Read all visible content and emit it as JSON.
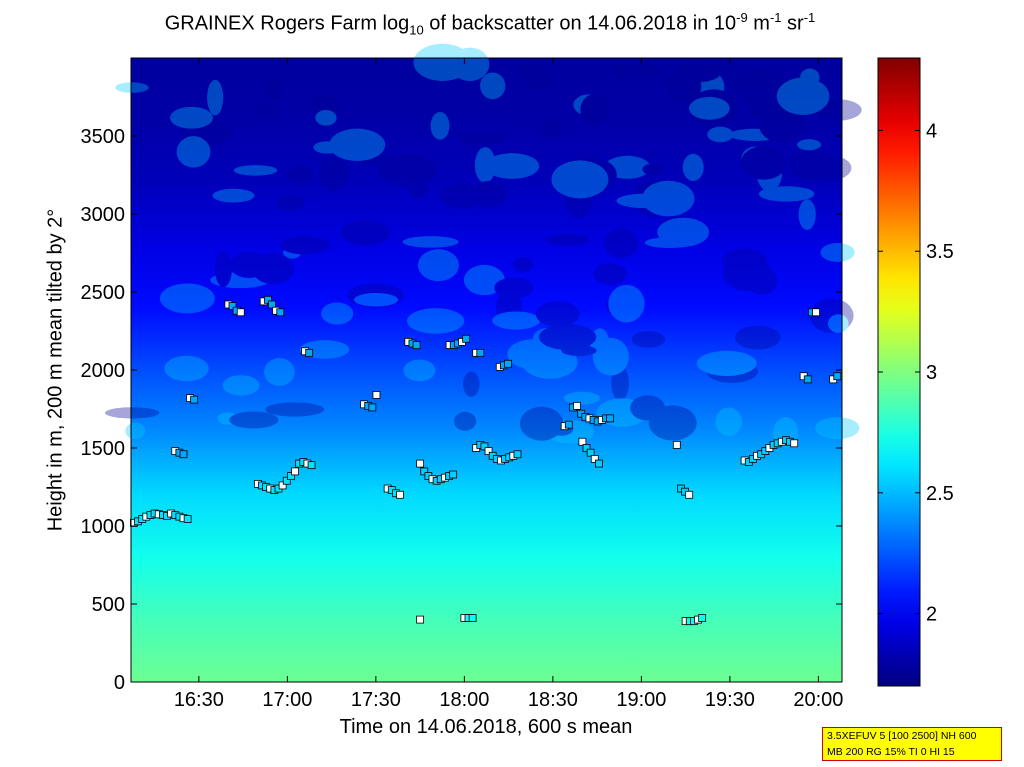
{
  "title": {
    "prefix": "GRAINEX Rogers Farm log",
    "log_base": "10",
    "middle": " of backscatter on 14.06.2018 in 10",
    "exp1": "-9",
    "unit1": " m",
    "exp2": "-1",
    "unit2": " sr",
    "exp3": "-1"
  },
  "chart_data": {
    "type": "heatmap",
    "xlabel": "Time on 14.06.2018, 600 s mean",
    "ylabel": "Height in m, 200 m mean tilted by 2°",
    "x_range": [
      "16:07",
      "20:08"
    ],
    "ylim": [
      0,
      4000
    ],
    "x_ticks": [
      "16:30",
      "17:00",
      "17:30",
      "18:00",
      "18:30",
      "19:00",
      "19:30",
      "20:00"
    ],
    "y_ticks": [
      0,
      500,
      1000,
      1500,
      2000,
      2500,
      3000,
      3500
    ],
    "colorbar": {
      "range": [
        1.7,
        4.3
      ],
      "ticks": [
        "2",
        "2.5",
        "3",
        "3.5",
        "4"
      ],
      "colormap": "jet"
    },
    "background_profile": [
      {
        "height": 0,
        "value": 2.95
      },
      {
        "height": 400,
        "value": 2.85
      },
      {
        "height": 800,
        "value": 2.72
      },
      {
        "height": 1200,
        "value": 2.58
      },
      {
        "height": 1600,
        "value": 2.38
      },
      {
        "height": 2000,
        "value": 2.22
      },
      {
        "height": 2400,
        "value": 2.05
      },
      {
        "height": 2800,
        "value": 1.95
      },
      {
        "height": 3200,
        "value": 1.85
      },
      {
        "height": 3600,
        "value": 1.8
      },
      {
        "height": 4000,
        "value": 1.78
      }
    ],
    "markers": [
      {
        "series": "cloud_layer_low",
        "time": "16:08",
        "heights": [
          1020,
          1030,
          1045,
          1060,
          1070,
          1080,
          1075,
          1070,
          1065,
          1080,
          1070,
          1060,
          1050,
          1045
        ]
      },
      {
        "series": "cloud_layer_low",
        "time": "16:50",
        "heights": [
          1270,
          1260,
          1250,
          1240,
          1230,
          1240,
          1260,
          1290,
          1320,
          1350,
          1400,
          1410,
          1400,
          1390
        ]
      },
      {
        "series": "cloud_layer_low",
        "time": "17:34",
        "heights": [
          1240,
          1230,
          1210,
          1200
        ]
      },
      {
        "series": "cloud_layer_mid",
        "time": "17:45",
        "heights": [
          1400,
          1350,
          1320,
          1300,
          1290,
          1300,
          1310,
          1320,
          1330
        ]
      },
      {
        "series": "cloud_layer_mid",
        "time": "18:04",
        "heights": [
          1500,
          1520,
          1510,
          1480,
          1450,
          1430,
          1420,
          1430,
          1440,
          1450,
          1460
        ]
      },
      {
        "series": "cloud_layer_mid",
        "time": "18:40",
        "heights": [
          1540,
          1500,
          1470,
          1430,
          1400
        ]
      },
      {
        "series": "cloud_layer_mid",
        "time": "19:12",
        "heights": [
          1520,
          1240,
          1220,
          1200
        ]
      },
      {
        "series": "cloud_layer_mid",
        "time": "19:35",
        "heights": [
          1420,
          1410,
          1430,
          1450,
          1460,
          1480,
          1500,
          1520,
          1530,
          1540,
          1550,
          1540,
          1530
        ]
      },
      {
        "series": "cloud_layer_high",
        "time": "16:22",
        "heights": [
          1480,
          1470,
          1460
        ]
      },
      {
        "series": "cloud_layer_high",
        "time": "16:27",
        "heights": [
          1820,
          1810
        ]
      },
      {
        "series": "cloud_layer_high",
        "time": "16:40",
        "heights": [
          2420,
          2410,
          2380,
          2370
        ]
      },
      {
        "series": "cloud_layer_high",
        "time": "16:52",
        "heights": [
          2440,
          2450,
          2420,
          2380,
          2370
        ]
      },
      {
        "series": "cloud_layer_high",
        "time": "17:06",
        "heights": [
          2120,
          2110
        ]
      },
      {
        "series": "cloud_layer_high",
        "time": "17:26",
        "heights": [
          1780,
          1770,
          1760,
          1840
        ]
      },
      {
        "series": "cloud_layer_high",
        "time": "17:41",
        "heights": [
          2180,
          2170,
          2160
        ]
      },
      {
        "series": "cloud_layer_high",
        "time": "17:55",
        "heights": [
          2160,
          2160,
          2170,
          2180,
          2200
        ]
      },
      {
        "series": "cloud_layer_high",
        "time": "18:04",
        "heights": [
          2110,
          2110
        ]
      },
      {
        "series": "cloud_layer_high",
        "time": "18:12",
        "heights": [
          2020,
          2030,
          2040
        ]
      },
      {
        "series": "cloud_layer_high",
        "time": "18:34",
        "heights": [
          1640,
          1650,
          1760,
          1770,
          1720,
          1700,
          1690,
          1680,
          1670,
          1680,
          1690,
          1690
        ]
      },
      {
        "series": "cloud_layer_high",
        "time": "19:55",
        "heights": [
          1960,
          1940,
          2370,
          2370
        ]
      },
      {
        "series": "cloud_layer_high",
        "time": "20:05",
        "heights": [
          1940,
          1960
        ]
      },
      {
        "series": "aerosol",
        "time": "17:45",
        "heights": [
          400
        ]
      },
      {
        "series": "aerosol",
        "time": "18:00",
        "heights": [
          410,
          410,
          410
        ]
      },
      {
        "series": "aerosol",
        "time": "19:15",
        "heights": [
          390,
          390,
          390,
          400,
          410
        ]
      }
    ]
  },
  "info_box": {
    "line1": "3.5XEFUV 5 [100 2500] NH 600",
    "line2": "MB 200 RG 15% TI 0 HI 15"
  },
  "colors": {
    "frame": "#000000",
    "marker_edge": "#000000",
    "info_box_bg": "#ffff00",
    "info_box_border": "#d00000"
  }
}
